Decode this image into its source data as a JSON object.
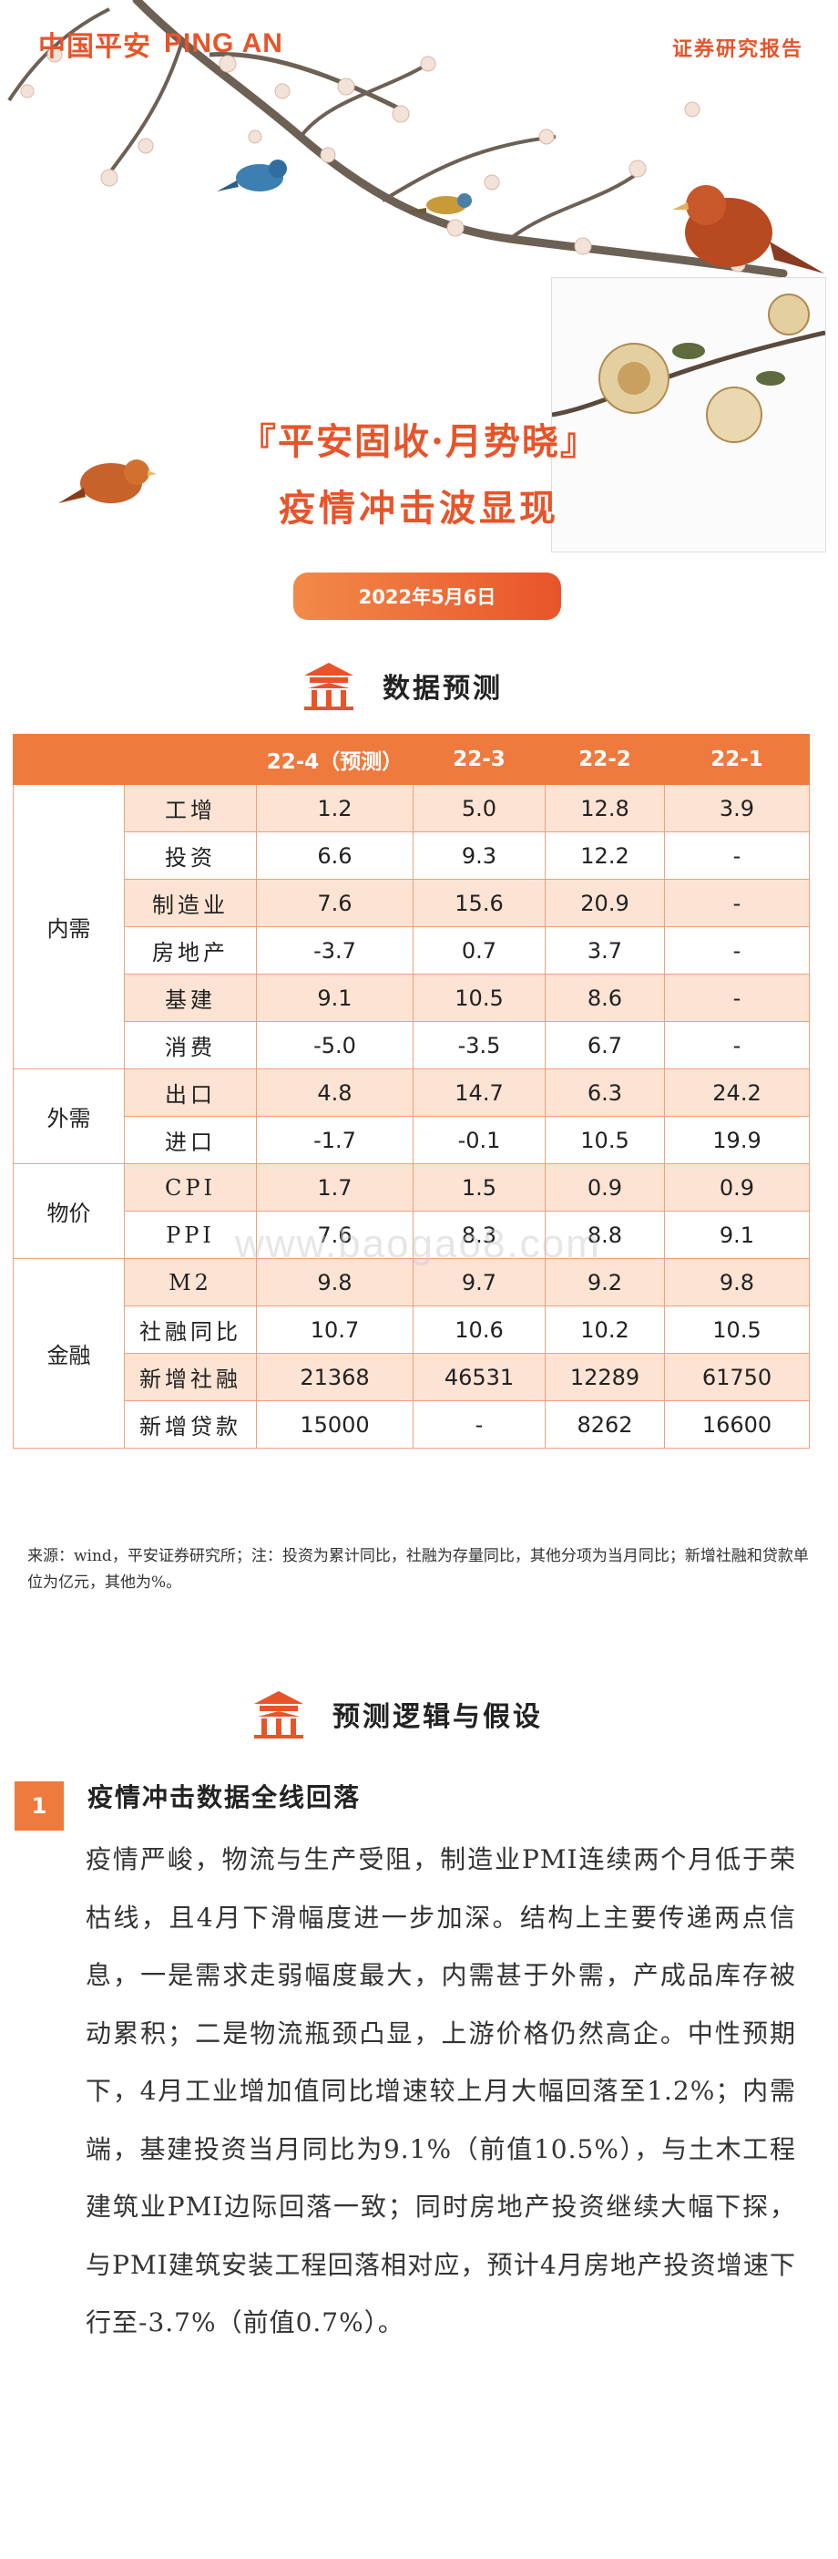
{
  "header": {
    "logo_cn": "中国平安",
    "logo_en": "PING AN",
    "report_type": "证券研究报告"
  },
  "title": {
    "line1": "『平安固收·月势晓』",
    "line2": "疫情冲击波显现"
  },
  "date": "2022年5月6日",
  "section1": {
    "title": "数据预测"
  },
  "table": {
    "headers": [
      "",
      "",
      "22-4（预测）",
      "22-3",
      "22-2",
      "22-1"
    ],
    "groups": {
      "domestic": "内需",
      "external": "外需",
      "price": "物价",
      "finance": "金融"
    },
    "rows": [
      {
        "label": "工增",
        "values": [
          "1.2",
          "5.0",
          "12.8",
          "3.9"
        ]
      },
      {
        "label": "投资",
        "values": [
          "6.6",
          "9.3",
          "12.2",
          "-"
        ]
      },
      {
        "label": "制造业",
        "values": [
          "7.6",
          "15.6",
          "20.9",
          "-"
        ]
      },
      {
        "label": "房地产",
        "values": [
          "-3.7",
          "0.7",
          "3.7",
          "-"
        ]
      },
      {
        "label": "基建",
        "values": [
          "9.1",
          "10.5",
          "8.6",
          "-"
        ]
      },
      {
        "label": "消费",
        "values": [
          "-5.0",
          "-3.5",
          "6.7",
          "-"
        ]
      },
      {
        "label": "出口",
        "values": [
          "4.8",
          "14.7",
          "6.3",
          "24.2"
        ]
      },
      {
        "label": "进口",
        "values": [
          "-1.7",
          "-0.1",
          "10.5",
          "19.9"
        ]
      },
      {
        "label": "CPI",
        "values": [
          "1.7",
          "1.5",
          "0.9",
          "0.9"
        ]
      },
      {
        "label": "PPI",
        "values": [
          "7.6",
          "8.3",
          "8.8",
          "9.1"
        ]
      },
      {
        "label": "M2",
        "values": [
          "9.8",
          "9.7",
          "9.2",
          "9.8"
        ]
      },
      {
        "label": "社融同比",
        "values": [
          "10.7",
          "10.6",
          "10.2",
          "10.5"
        ]
      },
      {
        "label": "新增社融",
        "values": [
          "21368",
          "46531",
          "12289",
          "61750"
        ]
      },
      {
        "label": "新增贷款",
        "values": [
          "15000",
          "-",
          "8262",
          "16600"
        ]
      }
    ]
  },
  "source_note": "来源：wind，平安证券研究所；注：投资为累计同比，社融为存量同比，其他分项为当月同比；新增社融和贷款单位为亿元，其他为%。",
  "watermark": "www.baogao8.com",
  "section2": {
    "title": "预测逻辑与假设",
    "point_number": "1",
    "point_title": "疫情冲击数据全线回落",
    "body": "疫情严峻，物流与生产受阻，制造业PMI连续两个月低于荣枯线，且4月下滑幅度进一步加深。结构上主要传递两点信息，一是需求走弱幅度最大，内需甚于外需，产成品库存被动累积；二是物流瓶颈凸显，上游价格仍然高企。中性预期下，4月工业增加值同比增速较上月大幅回落至1.2%；内需端，基建投资当月同比为9.1%（前值10.5%），与土木工程建筑业PMI边际回落一致；同时房地产投资继续大幅下探，与PMI建筑安装工程回落相对应，预计4月房地产投资增速下行至-3.7%（前值0.7%）。"
  },
  "colors": {
    "accent": "#e8542a",
    "header_fill": "#ef7a3e",
    "alt_row": "#fce3d3"
  }
}
